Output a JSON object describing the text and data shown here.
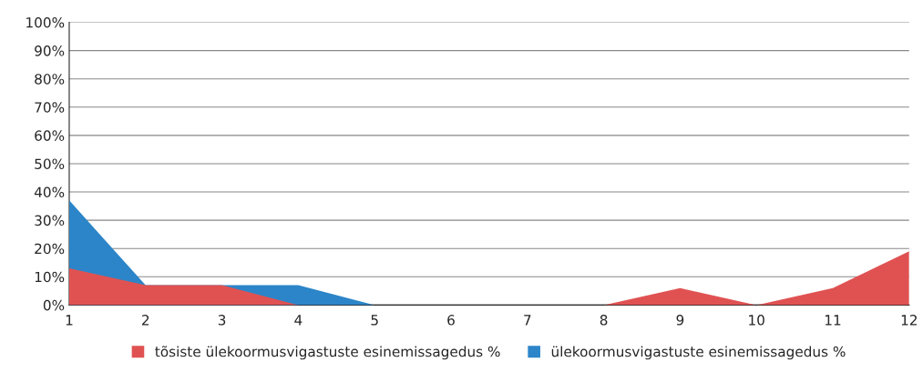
{
  "chart_data": {
    "type": "area",
    "x": [
      1,
      2,
      3,
      4,
      5,
      6,
      7,
      8,
      9,
      10,
      11,
      12
    ],
    "series": [
      {
        "name": "tõsiste ülekoormusvigastuste esinemissagedus %",
        "color": "#e05252",
        "values": [
          13,
          7,
          7,
          0,
          0,
          0,
          0,
          0,
          6,
          0,
          6,
          19
        ]
      },
      {
        "name": "ülekoormusvigastuste esinemissagedus %",
        "color": "#2c85c8",
        "values": [
          37,
          7,
          7,
          7,
          0,
          0,
          0,
          0,
          0,
          0,
          0,
          0
        ]
      }
    ],
    "xlim": [
      1,
      12
    ],
    "xticks": [
      1,
      2,
      3,
      4,
      5,
      6,
      7,
      8,
      9,
      10,
      11,
      12
    ],
    "ylim": [
      0,
      100
    ],
    "yticks": [
      {
        "value": 0,
        "label": "0%"
      },
      {
        "value": 10,
        "label": "10%"
      },
      {
        "value": 20,
        "label": "20%"
      },
      {
        "value": 30,
        "label": "30%"
      },
      {
        "value": 40,
        "label": "40%"
      },
      {
        "value": 50,
        "label": "50%"
      },
      {
        "value": 60,
        "label": "60%"
      },
      {
        "value": 70,
        "label": "70%"
      },
      {
        "value": 80,
        "label": "80%"
      },
      {
        "value": 90,
        "label": "90%"
      },
      {
        "value": 100,
        "label": "100%"
      }
    ],
    "grid": "y",
    "legend": "bottom"
  }
}
